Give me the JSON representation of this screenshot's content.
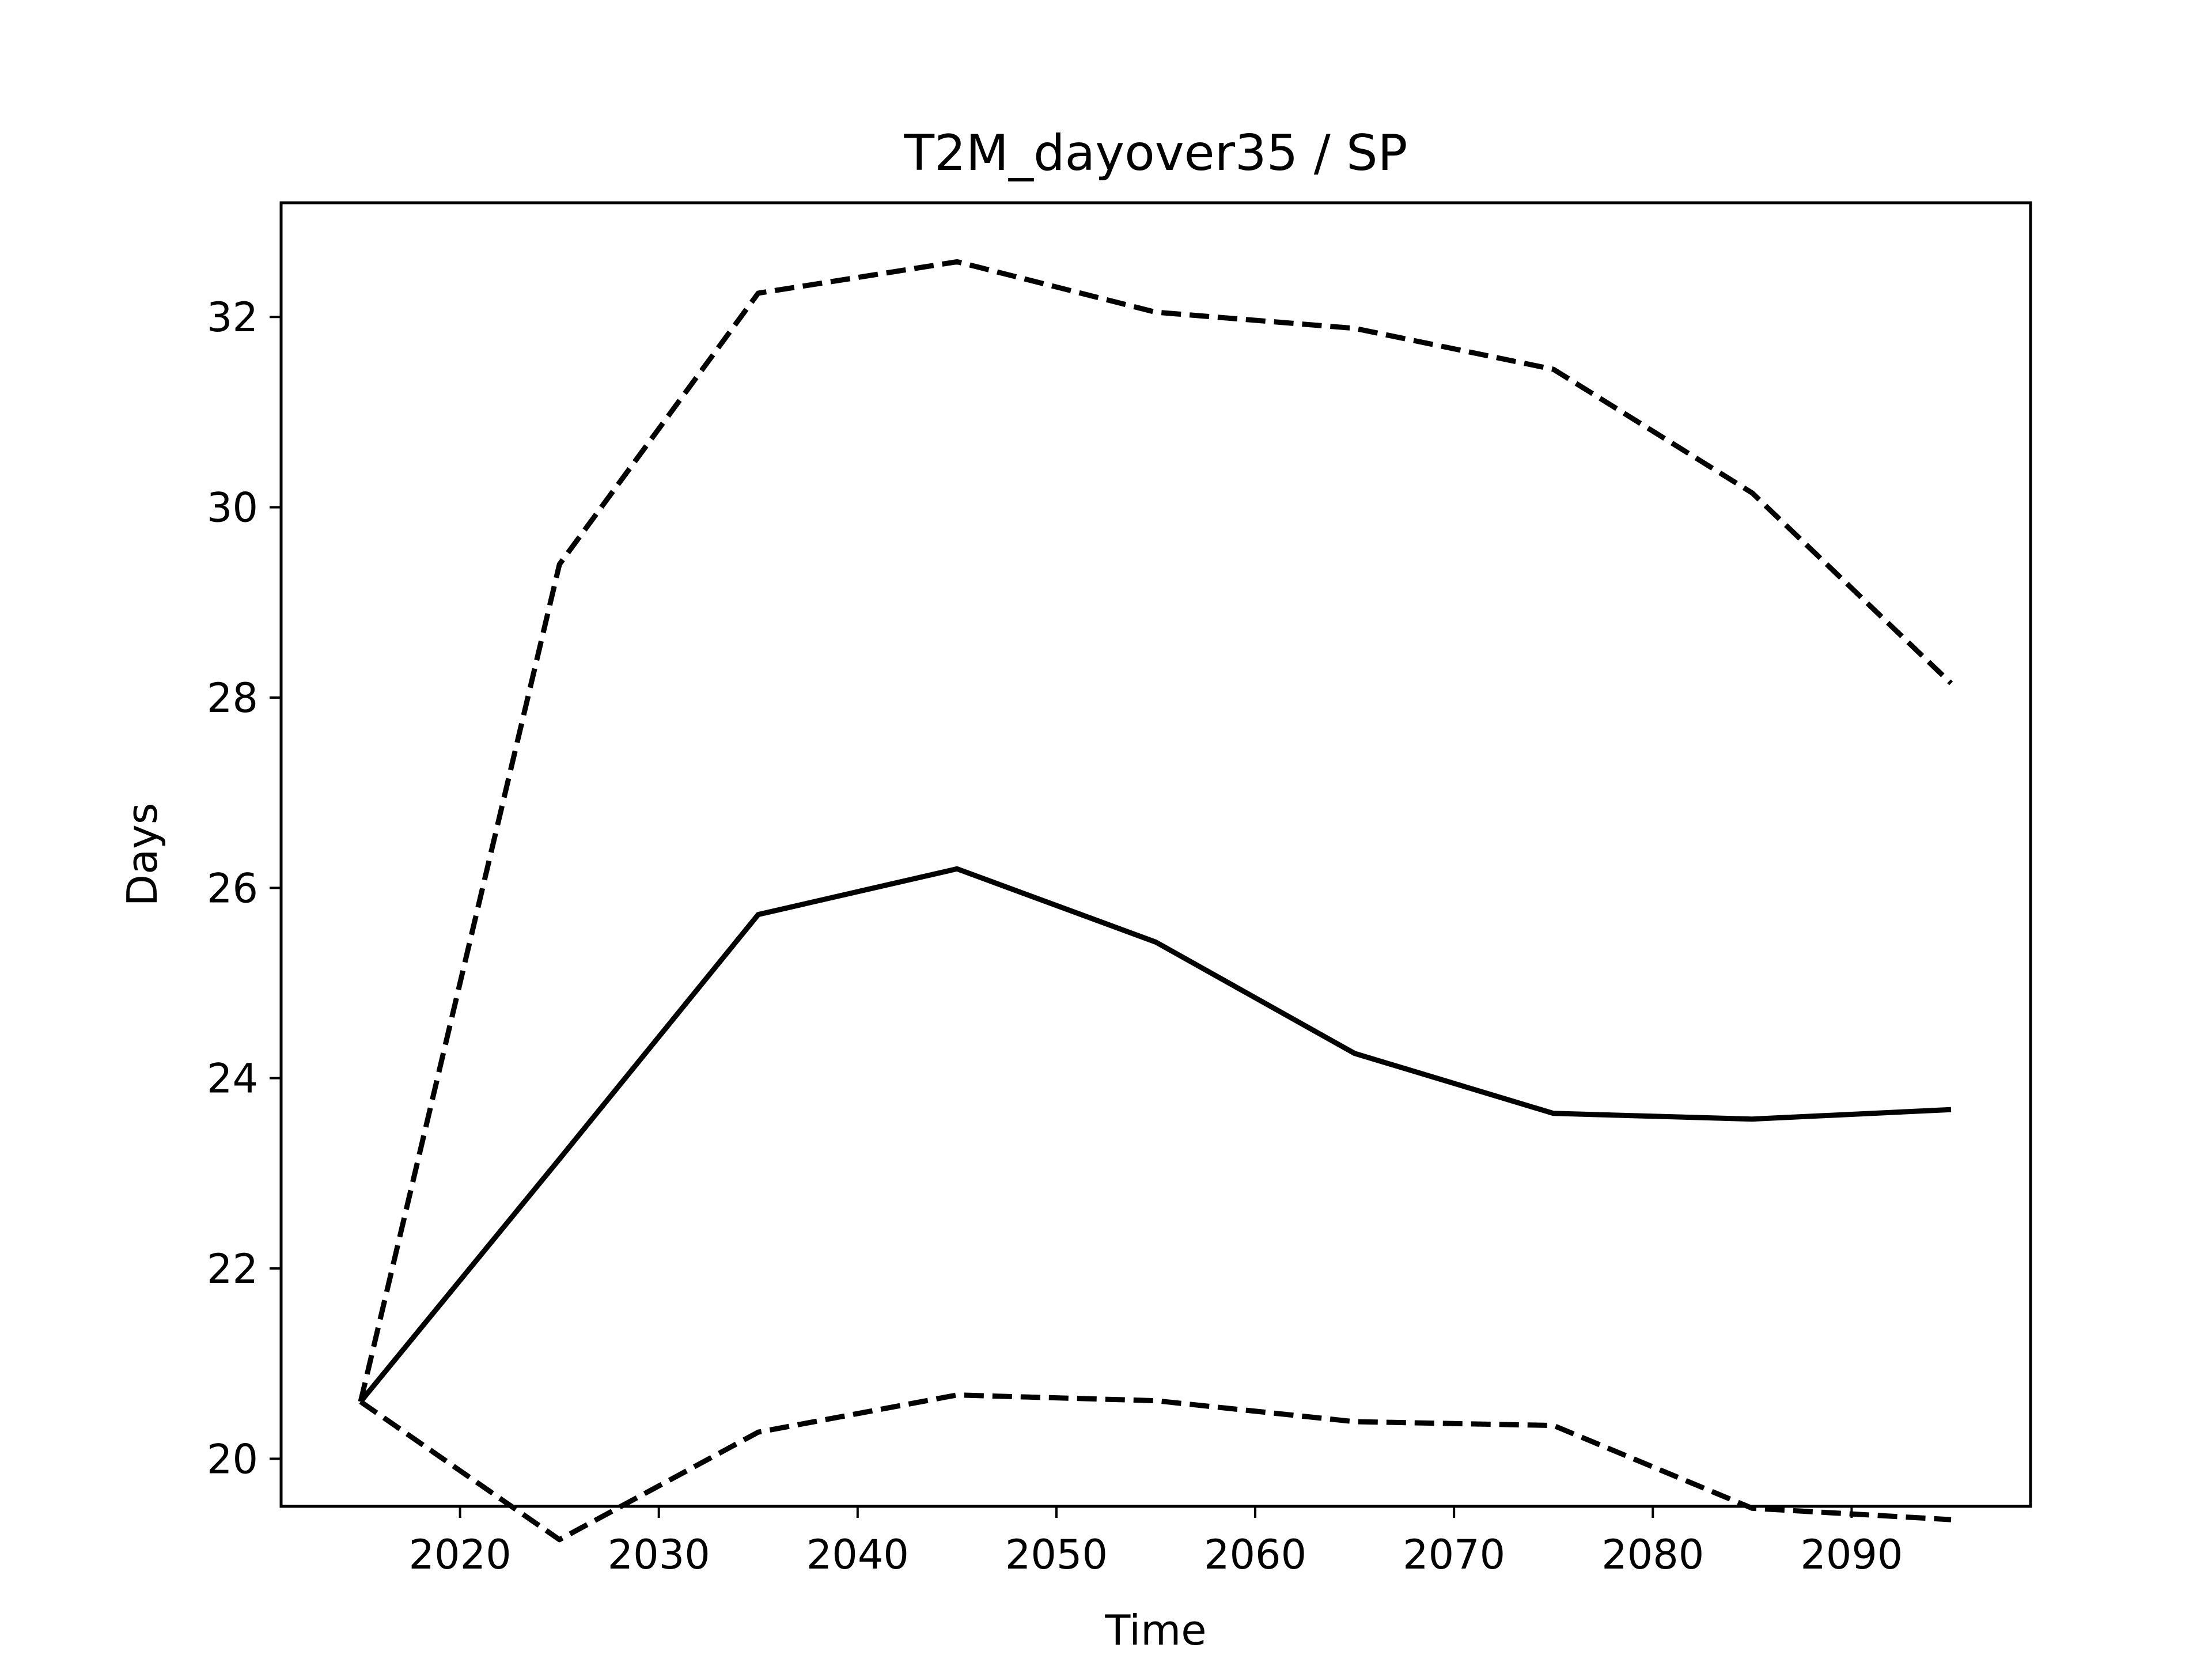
{
  "chart_data": {
    "type": "line",
    "title": "T2M_dayover35 / SP",
    "xlabel": "Time",
    "ylabel": "Days",
    "xlim": [
      2011,
      2099
    ],
    "ylim": [
      19.5,
      33.2
    ],
    "xticks": [
      2020,
      2030,
      2040,
      2050,
      2060,
      2070,
      2080,
      2090
    ],
    "yticks": [
      20,
      22,
      24,
      26,
      28,
      30,
      32
    ],
    "x": [
      2015,
      2025,
      2035,
      2045,
      2055,
      2065,
      2075,
      2085,
      2095
    ],
    "grid": false,
    "legend": "none",
    "series": [
      {
        "style": "dashed",
        "color": "#000000",
        "values": [
          20.6,
          29.4,
          32.25,
          32.58,
          32.05,
          31.88,
          31.45,
          30.15,
          28.15
        ]
      },
      {
        "style": "solid",
        "color": "#000000",
        "values": [
          20.6,
          23.15,
          25.72,
          26.2,
          25.43,
          24.26,
          23.63,
          23.57,
          23.67
        ]
      },
      {
        "style": "dashed",
        "color": "#000000",
        "values": [
          20.6,
          19.15,
          20.28,
          20.67,
          20.61,
          20.39,
          20.35,
          19.48,
          19.36
        ]
      }
    ]
  }
}
